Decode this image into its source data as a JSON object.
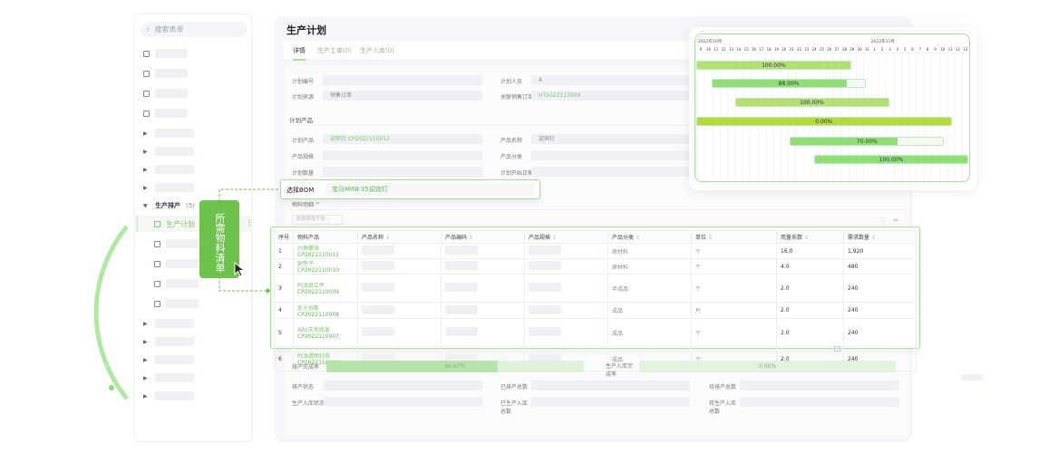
{
  "sidebar": {
    "search_placeholder": "搜索表单",
    "group_label": "生产排产",
    "group_count": "(5)",
    "active_item": "生产计划"
  },
  "callout": {
    "label": "所需物料清单"
  },
  "page": {
    "title": "生产计划",
    "tabs": [
      {
        "label": "详情",
        "active": true
      },
      {
        "label": "生产工单(0)"
      },
      {
        "label": "生产入库(0)"
      }
    ]
  },
  "form": {
    "plan_no": "计划编号",
    "planner": "计划人员",
    "planner_value": "A",
    "source": "计划来源",
    "source_value": "销售订单",
    "sales_order": "关联销售订单",
    "sales_order_value": "HT2022113009",
    "section": "计划产品",
    "product": "计划产品",
    "product_value": "迎宾灯 CP2022110012",
    "product_name": "产品名称",
    "product_name_value": "迎宾灯",
    "spec": "产品规格",
    "category": "产品分类",
    "qty": "计划数量",
    "start_date": "计划开始日期",
    "material_section": "物料明细",
    "filter_placeholder": "选择筛选字段"
  },
  "bom": {
    "label": "选择BOM",
    "value": "宝马MINI-35迎宾灯"
  },
  "table": {
    "columns": [
      "序号",
      "物料产品",
      "产品名称",
      "产品编码",
      "产品规格",
      "产品分类",
      "单位",
      "用量系数",
      "需求数量"
    ],
    "rows": [
      {
        "no": "1",
        "name": "六角螺母",
        "code": "CP2022110011",
        "category": "原材料",
        "unit": "个",
        "coef": "16.0",
        "qty": "1,920"
      },
      {
        "no": "2",
        "name": "铜垫子",
        "code": "CP2022110010",
        "category": "原材料",
        "unit": "个",
        "coef": "4.0",
        "qty": "480"
      },
      {
        "no": "3",
        "name": "PCB组立件",
        "code": "CP2022110009",
        "category": "半成品",
        "unit": "个",
        "coef": "2.0",
        "qty": "240"
      },
      {
        "no": "4",
        "name": "反光挡板",
        "code": "CP2022110008",
        "category": "成品",
        "unit": "片",
        "coef": "2.0",
        "qty": "240"
      },
      {
        "no": "5",
        "name": "ABS灰色底盖",
        "code": "CP2022110007",
        "category": "成品",
        "unit": "个",
        "coef": "2.0",
        "qty": "240"
      },
      {
        "no": "6",
        "name": "PCB透明灯壳",
        "code": "CP2022110006",
        "category": "成品",
        "unit": "个",
        "coef": "2.0",
        "qty": "240"
      }
    ]
  },
  "progress": {
    "schedule_label": "排产完成率",
    "schedule_pct": 66.67,
    "schedule_text": "66.67%",
    "stock_label": "生产入库完成率",
    "stock_pct": 0,
    "stock_text": "0.00%",
    "labels": [
      "排产状态",
      "已排产总数",
      "待排产总数",
      "生产入库状态",
      "已生产入库总数",
      "待生产入库总数"
    ]
  },
  "gantt": {
    "month1": "2022年10月",
    "month2": "2022年11月",
    "days": [
      "9",
      "10",
      "11",
      "12",
      "13",
      "14",
      "15",
      "16",
      "17",
      "18",
      "19",
      "20",
      "21",
      "22",
      "23",
      "24",
      "25",
      "26",
      "27",
      "28",
      "29",
      "30",
      "31",
      "1",
      "2",
      "3",
      "4",
      "5",
      "6",
      "7",
      "8",
      "9",
      "10",
      "11",
      "12",
      "13"
    ],
    "bars": [
      {
        "start": 0,
        "end": 20.5,
        "pct": 100,
        "label": "100.00%",
        "color": "#b3e06e"
      },
      {
        "start": 2,
        "end": 22.5,
        "pct": 88,
        "label": "88.00%",
        "color": "#8fdf72"
      },
      {
        "start": 5.1,
        "end": 25.5,
        "pct": 100,
        "label": "100.00%",
        "color": "#b3e06e"
      },
      {
        "start": 0,
        "end": 33.8,
        "pct": 0,
        "label": "0.00%",
        "color": "#b5da35"
      },
      {
        "start": 12.4,
        "end": 32.8,
        "pct": 70,
        "label": "70.00%",
        "color": "#8fdf72"
      },
      {
        "start": 15.6,
        "end": 36,
        "pct": 100,
        "label": "100.00%",
        "color": "#8fdf72"
      }
    ]
  },
  "colors": {
    "accent": "#6cc24a",
    "light_green": "#a8e09a"
  }
}
